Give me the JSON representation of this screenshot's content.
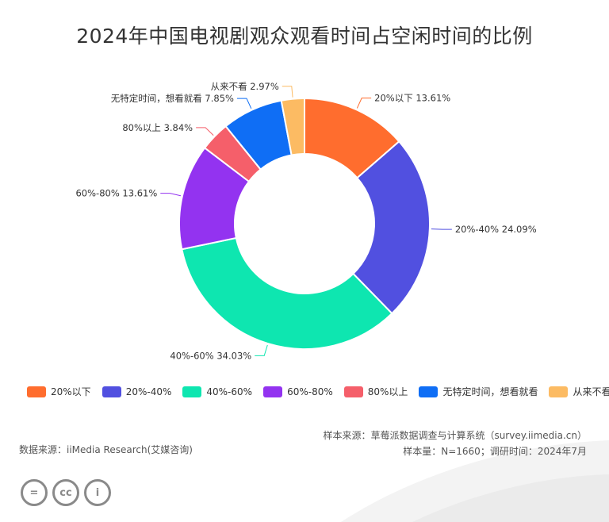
{
  "chart_data": {
    "type": "pie",
    "title": "2024年中国电视剧观众观看时间占空闲时间的比例",
    "categories": [
      "20%以下",
      "20%-40%",
      "40%-60%",
      "60%-80%",
      "80%以上",
      "无特定时间，想看就看",
      "从来不看"
    ],
    "values": [
      13.61,
      24.09,
      34.03,
      13.61,
      3.84,
      7.85,
      2.97
    ],
    "labels": [
      "20%以下 13.61%",
      "20%-40% 24.09%",
      "40%-60% 34.03%",
      "60%-80% 13.61%",
      "80%以上 3.84%",
      "无特定时间，想看就看 7.85%",
      "从来不看 2.97%"
    ],
    "colors": [
      "#ff6d2e",
      "#5150e0",
      "#0ee6b0",
      "#9333f0",
      "#f55f6a",
      "#0f6ef5",
      "#fcbb63"
    ],
    "legend_position": "bottom",
    "donut": true
  },
  "source": {
    "sample_source": "样本来源：草莓派数据调查与计算系统（survey.iimedia.cn）",
    "sample_size": "样本量：N=1660；调研时间：2024年7月",
    "data_source": "数据来源：iiMedia Research(艾媒咨询)"
  },
  "license_icons": [
    "equals-icon",
    "cc-icon",
    "person-icon"
  ],
  "license_glyphs": [
    "=",
    "cc",
    "i"
  ]
}
